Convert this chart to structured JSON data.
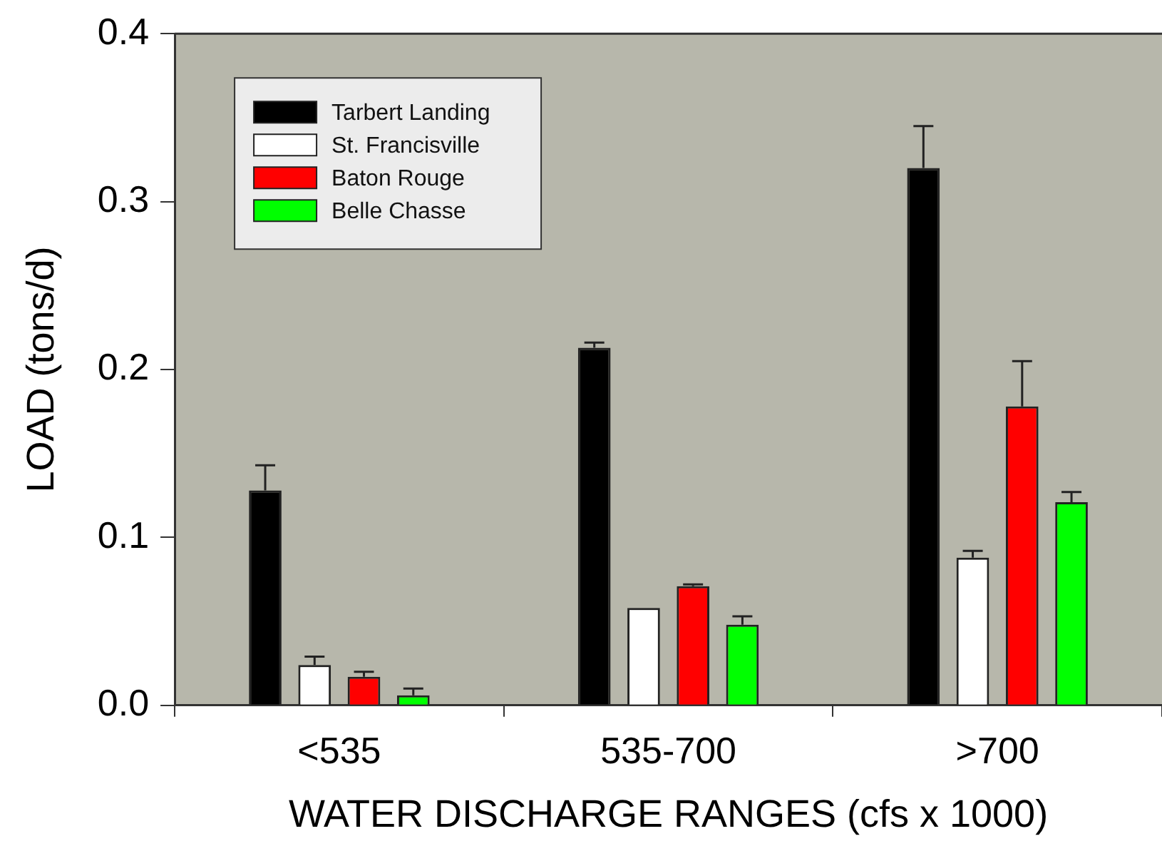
{
  "chart_data": {
    "type": "bar",
    "xlabel": "WATER DISCHARGE RANGES (cfs x 1000)",
    "ylabel": "LOAD (tons/d)",
    "categories": [
      "<535",
      "535-700",
      ">700"
    ],
    "series": [
      {
        "name": "Tarbert Landing",
        "color": "#000000",
        "values": [
          0.128,
          0.213,
          0.32
        ],
        "errors": [
          0.015,
          0.003,
          0.025
        ]
      },
      {
        "name": "St. Francisville",
        "color": "#ffffff",
        "values": [
          0.024,
          0.058,
          0.088
        ],
        "errors": [
          0.005,
          null,
          0.004
        ]
      },
      {
        "name": "Baton Rouge",
        "color": "#ff0000",
        "values": [
          0.017,
          0.071,
          0.178
        ],
        "errors": [
          0.003,
          0.001,
          0.027
        ]
      },
      {
        "name": "Belle Chasse",
        "color": "#00ff00",
        "values": [
          0.006,
          0.048,
          0.121
        ],
        "errors": [
          0.004,
          0.005,
          0.006
        ]
      }
    ],
    "ylim": [
      0,
      0.4
    ],
    "yticks": [
      {
        "value": 0,
        "label": "0.0"
      },
      0.1,
      0.2,
      0.3,
      0.4
    ],
    "grid": false,
    "legend": "top left"
  }
}
